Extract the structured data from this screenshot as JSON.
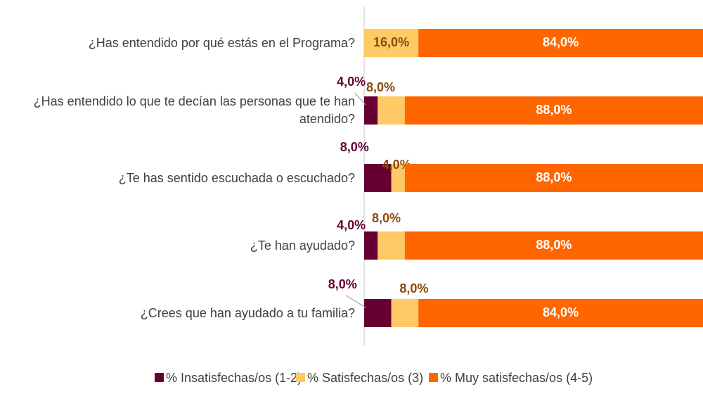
{
  "chart_data": {
    "type": "stacked-bar-horizontal",
    "categories": [
      "¿Has entendido por qué estás en el Programa?",
      "¿Has entendido lo que te decían las personas que te han atendido?",
      "¿Te has sentido escuchada o escuchado?",
      "¿Te han ayudado?",
      "¿Crees que han ayudado a tu familia?"
    ],
    "series": [
      {
        "name": "% Insatisfechas/os (1-2)",
        "color": "#660033",
        "label_color": "#660033",
        "values": [
          0,
          4,
          8,
          4,
          8
        ],
        "value_labels": [
          null,
          "4,0%",
          "8,0%",
          "4,0%",
          "8,0%"
        ]
      },
      {
        "name": "% Satisfechas/os (3)",
        "color": "#ffc966",
        "label_color": "#8a4a0a",
        "values": [
          16,
          8,
          4,
          8,
          8
        ],
        "value_labels": [
          "16,0%",
          "8,0%",
          "4,0%",
          "8,0%",
          "8,0%"
        ]
      },
      {
        "name": "% Muy satisfechas/os (4-5)",
        "color": "#ff6600",
        "label_color": "#ffffff",
        "values": [
          84,
          88,
          88,
          88,
          84
        ],
        "value_labels": [
          "84,0%",
          "88,0%",
          "88,0%",
          "88,0%",
          "84,0%"
        ]
      }
    ],
    "xlim": [
      0,
      100
    ],
    "legend": "bottom"
  }
}
